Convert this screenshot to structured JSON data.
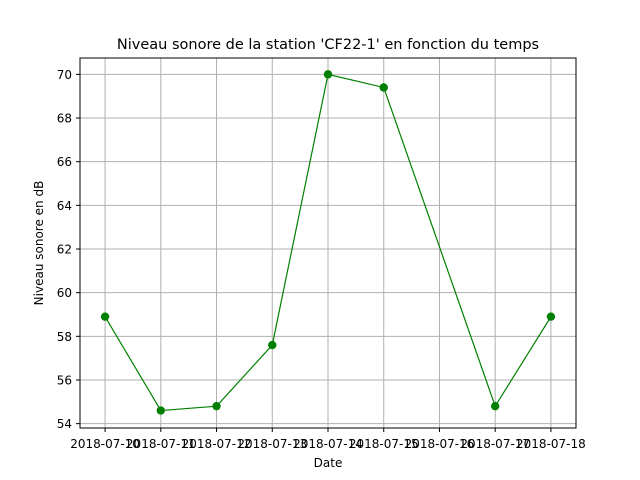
{
  "chart_data": {
    "type": "line",
    "title": "Niveau sonore de la station 'CF22-1' en fonction du temps",
    "xlabel": "Date",
    "ylabel": "Niveau sonore en dB",
    "x_tick_labels": [
      "2018-07-10",
      "2018-07-11",
      "2018-07-12",
      "2018-07-13",
      "2018-07-14",
      "2018-07-15",
      "2018-07-16",
      "2018-07-17",
      "2018-07-18"
    ],
    "x": [
      "2018-07-10",
      "2018-07-11",
      "2018-07-12",
      "2018-07-13",
      "2018-07-14",
      "2018-07-15",
      "2018-07-17",
      "2018-07-18"
    ],
    "series": [
      {
        "values": [
          58.9,
          54.6,
          54.8,
          57.6,
          70.0,
          69.4,
          54.8,
          58.9
        ],
        "color": "#008000",
        "marker": "circle"
      }
    ],
    "ylim": [
      53.8,
      70.75
    ],
    "y_ticks": [
      54,
      56,
      58,
      60,
      62,
      64,
      66,
      68,
      70
    ],
    "grid": true,
    "legend": "none"
  }
}
